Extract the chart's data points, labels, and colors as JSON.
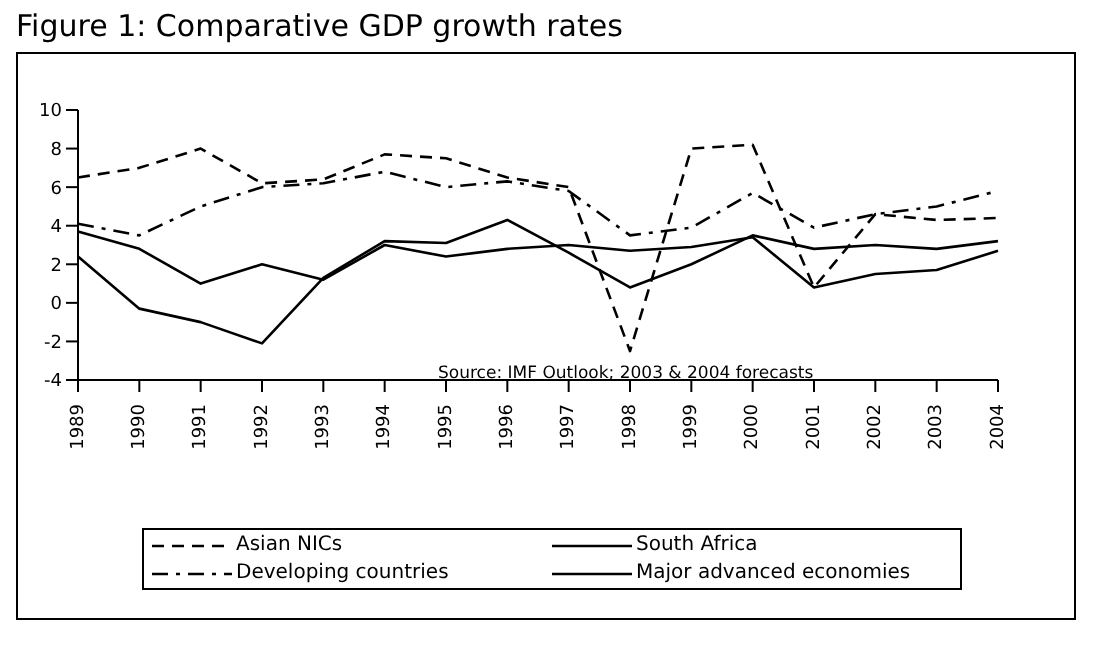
{
  "chart_data": {
    "type": "line",
    "title": "Figure 1: Comparative GDP growth rates",
    "categories": [
      "1989",
      "1990",
      "1991",
      "1992",
      "1993",
      "1994",
      "1995",
      "1996",
      "1997",
      "1998",
      "1999",
      "2000",
      "2001",
      "2002",
      "2003",
      "2004"
    ],
    "series": [
      {
        "name": "Asian NICs",
        "color": "#000000",
        "line_style": "dashed",
        "values": [
          6.5,
          7.0,
          8.0,
          6.2,
          6.4,
          7.7,
          7.5,
          6.5,
          6.0,
          -2.5,
          8.0,
          8.2,
          0.8,
          4.6,
          4.3,
          4.4
        ]
      },
      {
        "name": "South Africa",
        "color": "#000000",
        "line_style": "solid",
        "values": [
          2.4,
          -0.3,
          -1.0,
          -2.1,
          1.3,
          3.2,
          3.1,
          4.3,
          2.6,
          0.8,
          2.0,
          3.5,
          2.8,
          3.0,
          2.8,
          3.2
        ]
      },
      {
        "name": "Developing countries",
        "color": "#000000",
        "line_style": "dashdot",
        "values": [
          4.1,
          3.5,
          5.0,
          6.0,
          6.2,
          6.8,
          6.0,
          6.3,
          5.8,
          3.5,
          3.9,
          5.7,
          3.9,
          4.6,
          5.0,
          5.8
        ]
      },
      {
        "name": "Major advanced economies",
        "color": "#000000",
        "line_style": "solid",
        "values": [
          3.7,
          2.8,
          1.0,
          2.0,
          1.2,
          3.0,
          2.4,
          2.8,
          3.0,
          2.7,
          2.9,
          3.4,
          0.8,
          1.5,
          1.7,
          2.7
        ]
      }
    ],
    "ylim": [
      -4,
      10
    ],
    "yticks": [
      -4,
      -2,
      0,
      2,
      4,
      6,
      8,
      10
    ],
    "annotations": [
      "Source: IMF Outlook; 2003 & 2004 forecasts"
    ],
    "grid": false,
    "legend": "bottom",
    "marker": "none"
  }
}
